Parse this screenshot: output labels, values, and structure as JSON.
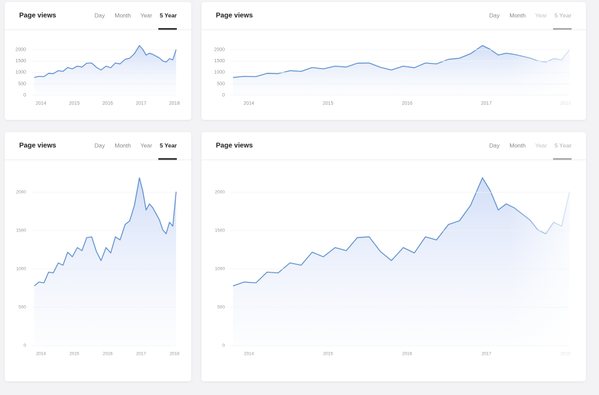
{
  "chart_data": [
    {
      "type": "line",
      "title": "Page views",
      "tabs": [
        "Day",
        "Month",
        "Year",
        "5 Year"
      ],
      "active_tab": 3,
      "color": "#5a8dcc",
      "x": [
        2013.8,
        2013.94,
        2014.09,
        2014.23,
        2014.37,
        2014.52,
        2014.66,
        2014.8,
        2014.94,
        2015.09,
        2015.23,
        2015.37,
        2015.52,
        2015.66,
        2015.8,
        2015.95,
        2016.09,
        2016.23,
        2016.37,
        2016.52,
        2016.66,
        2016.8,
        2016.95,
        2017.05,
        2017.15,
        2017.25,
        2017.35,
        2017.45,
        2017.55,
        2017.65,
        2017.75,
        2017.85,
        2017.95,
        2018.05
      ],
      "values": [
        780,
        830,
        820,
        960,
        950,
        1080,
        1050,
        1220,
        1160,
        1280,
        1240,
        1410,
        1420,
        1230,
        1110,
        1280,
        1210,
        1420,
        1380,
        1580,
        1630,
        1830,
        2190,
        2020,
        1770,
        1850,
        1800,
        1720,
        1640,
        1510,
        1460,
        1610,
        1560,
        2010
      ],
      "xlim": [
        2013.8,
        2018.05
      ],
      "xticks": [
        2014,
        2015,
        2016,
        2017,
        2018
      ],
      "ylim": [
        0,
        2250
      ],
      "yticks": [
        0,
        500,
        1000,
        1500,
        2000
      ],
      "grid": true
    },
    {
      "type": "line",
      "title": "Page views",
      "tabs": [
        "Day",
        "Month",
        "Year",
        "5 Year"
      ],
      "active_tab": 3,
      "color": "#5a8dcc",
      "x": [
        2013.8,
        2013.94,
        2014.09,
        2014.23,
        2014.37,
        2014.52,
        2014.66,
        2014.8,
        2014.94,
        2015.09,
        2015.23,
        2015.37,
        2015.52,
        2015.66,
        2015.8,
        2015.95,
        2016.09,
        2016.23,
        2016.37,
        2016.52,
        2016.66,
        2016.8,
        2016.95,
        2017.05,
        2017.15,
        2017.25,
        2017.35,
        2017.45,
        2017.55,
        2017.65,
        2017.75,
        2017.85,
        2017.95,
        2018.05
      ],
      "values": [
        780,
        830,
        820,
        960,
        950,
        1080,
        1050,
        1220,
        1160,
        1280,
        1240,
        1410,
        1420,
        1230,
        1110,
        1280,
        1210,
        1420,
        1380,
        1580,
        1630,
        1830,
        2190,
        2020,
        1770,
        1850,
        1800,
        1720,
        1640,
        1510,
        1460,
        1610,
        1560,
        2010
      ],
      "xlim": [
        2013.8,
        2018.05
      ],
      "xticks": [
        2014,
        2015,
        2016,
        2017,
        2018
      ],
      "ylim": [
        0,
        2250
      ],
      "yticks": [
        0,
        500,
        1000,
        1500,
        2000
      ],
      "grid": true
    },
    {
      "type": "line",
      "title": "Page views",
      "tabs": [
        "Day",
        "Month",
        "Year",
        "5 Year"
      ],
      "active_tab": 3,
      "color": "#5a8dcc",
      "x": [
        2013.8,
        2013.94,
        2014.09,
        2014.23,
        2014.37,
        2014.52,
        2014.66,
        2014.8,
        2014.94,
        2015.09,
        2015.23,
        2015.37,
        2015.52,
        2015.66,
        2015.8,
        2015.95,
        2016.09,
        2016.23,
        2016.37,
        2016.52,
        2016.66,
        2016.8,
        2016.95,
        2017.05,
        2017.15,
        2017.25,
        2017.35,
        2017.45,
        2017.55,
        2017.65,
        2017.75,
        2017.85,
        2017.95,
        2018.05
      ],
      "values": [
        780,
        830,
        820,
        960,
        950,
        1080,
        1050,
        1220,
        1160,
        1280,
        1240,
        1410,
        1420,
        1230,
        1110,
        1280,
        1210,
        1420,
        1380,
        1580,
        1630,
        1830,
        2190,
        2020,
        1770,
        1850,
        1800,
        1720,
        1640,
        1510,
        1460,
        1610,
        1560,
        2010
      ],
      "xlim": [
        2013.8,
        2018.05
      ],
      "xticks": [
        2014,
        2015,
        2016,
        2017,
        2018
      ],
      "ylim": [
        0,
        2250
      ],
      "yticks": [
        0,
        500,
        1000,
        1500,
        2000
      ],
      "grid": true
    },
    {
      "type": "line",
      "title": "Page views",
      "tabs": [
        "Day",
        "Month",
        "Year",
        "5 Year"
      ],
      "active_tab": 3,
      "color": "#5a8dcc",
      "x": [
        2013.8,
        2013.94,
        2014.09,
        2014.23,
        2014.37,
        2014.52,
        2014.66,
        2014.8,
        2014.94,
        2015.09,
        2015.23,
        2015.37,
        2015.52,
        2015.66,
        2015.8,
        2015.95,
        2016.09,
        2016.23,
        2016.37,
        2016.52,
        2016.66,
        2016.8,
        2016.95,
        2017.05,
        2017.15,
        2017.25,
        2017.35,
        2017.45,
        2017.55,
        2017.65,
        2017.75,
        2017.85,
        2017.95,
        2018.05
      ],
      "values": [
        780,
        830,
        820,
        960,
        950,
        1080,
        1050,
        1220,
        1160,
        1280,
        1240,
        1410,
        1420,
        1230,
        1110,
        1280,
        1210,
        1420,
        1380,
        1580,
        1630,
        1830,
        2190,
        2020,
        1770,
        1850,
        1800,
        1720,
        1640,
        1510,
        1460,
        1610,
        1560,
        2010
      ],
      "xlim": [
        2013.8,
        2018.05
      ],
      "xticks": [
        2014,
        2015,
        2016,
        2017,
        2018
      ],
      "ylim": [
        0,
        2250
      ],
      "yticks": [
        0,
        500,
        1000,
        1500,
        2000
      ],
      "grid": true
    }
  ]
}
